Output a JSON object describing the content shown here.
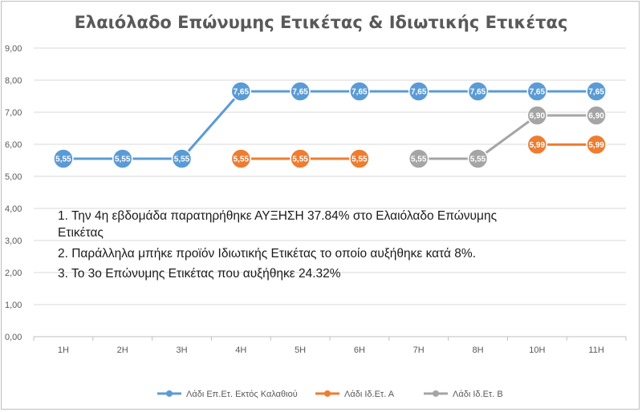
{
  "chart_data": {
    "type": "line",
    "title": "Ελαιόλαδο Επώνυμης Ετικέτας & Ιδιωτικής Ετικέτας",
    "categories": [
      "1Η",
      "2Η",
      "3Η",
      "4Η",
      "5Η",
      "6Η",
      "7Η",
      "8Η",
      "10Η",
      "11Η"
    ],
    "y_ticks": [
      "0,00",
      "1,00",
      "2,00",
      "3,00",
      "4,00",
      "5,00",
      "6,00",
      "7,00",
      "8,00",
      "9,00"
    ],
    "ylim": [
      0,
      9
    ],
    "grid": true,
    "legend_position": "bottom",
    "series": [
      {
        "name": "Λάδι Επ.Ετ. Εκτός Καλαθιού",
        "color": "#5b9bd5",
        "values": [
          5.55,
          5.55,
          5.55,
          7.65,
          7.65,
          7.65,
          7.65,
          7.65,
          7.65,
          7.65
        ],
        "labels": [
          "5,55",
          "5,55",
          "5,55",
          "7,65",
          "7,65",
          "7,65",
          "7,65",
          "7,65",
          "7,65",
          "7,65"
        ]
      },
      {
        "name": "Λάδι Ιδ.Ετ. Α",
        "color": "#ed7d31",
        "values": [
          null,
          null,
          null,
          5.55,
          5.55,
          5.55,
          null,
          null,
          5.99,
          5.99
        ],
        "labels": [
          null,
          null,
          null,
          "5,55",
          "5,55",
          "5,55",
          null,
          null,
          "5,99",
          "5,99"
        ]
      },
      {
        "name": "Λάδι Ιδ.Ετ. Β",
        "color": "#a5a5a5",
        "values": [
          null,
          null,
          null,
          null,
          null,
          null,
          5.55,
          5.55,
          6.9,
          6.9
        ],
        "labels": [
          null,
          null,
          null,
          null,
          null,
          null,
          "5,55",
          "5,55",
          "6,90",
          "6,90"
        ]
      }
    ],
    "annotations": [
      "1. Την 4η εβδομάδα παρατηρήθηκε ΑΥΞΗΣΗ 37.84% στο Ελαιόλαδο Επώνυμης",
      "Ετικέτας",
      "2. Παράλληλα μπήκε προϊόν Ιδιωτικής Ετικέτας το οποίο αυξήθηκε κατά 8%.",
      "3. Το 3ο Επώνυμης Ετικέτας που αυξήθηκε 24.32%"
    ]
  }
}
